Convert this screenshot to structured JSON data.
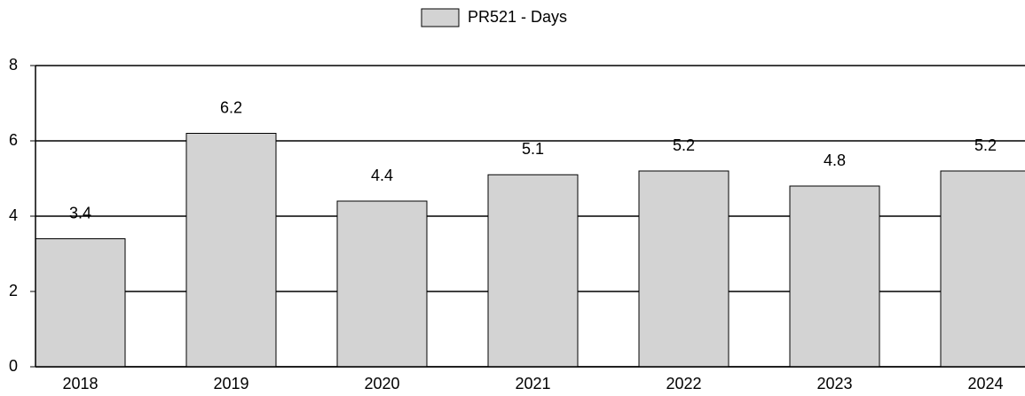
{
  "chart_data": {
    "type": "bar",
    "categories": [
      "2018",
      "2019",
      "2020",
      "2021",
      "2022",
      "2023",
      "2024"
    ],
    "series": [
      {
        "name": "PR521 - Days",
        "color": "#d3d3d3",
        "values": [
          3.4,
          6.2,
          4.4,
          5.1,
          5.2,
          4.8,
          5.2
        ]
      }
    ],
    "ylim": [
      0,
      8
    ],
    "yticks": [
      0,
      2,
      4,
      6,
      8
    ],
    "grid": true,
    "legend": "top"
  }
}
